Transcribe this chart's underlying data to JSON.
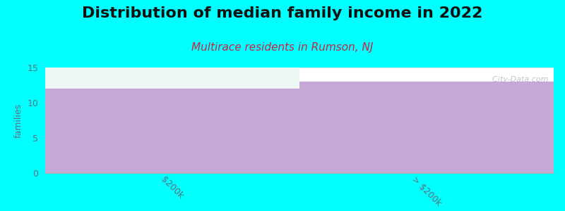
{
  "title": "Distribution of median family income in 2022",
  "subtitle": "Multirace residents in Rumson, NJ",
  "categories": [
    "$200k",
    "> $200k"
  ],
  "values": [
    12,
    13
  ],
  "bar_color": "#C4A8D8",
  "background_color": "#00FFFF",
  "plot_bg_color": "#FFFFFF",
  "ylabel": "families",
  "ylim": [
    0,
    15
  ],
  "yticks": [
    0,
    5,
    10,
    15
  ],
  "title_fontsize": 16,
  "subtitle_fontsize": 11,
  "subtitle_color": "#CC2244",
  "ylabel_color": "#607080",
  "tick_label_color": "#607080",
  "watermark": "  City-Data.com",
  "bar1_top_color": "#EEF8F2",
  "title_fontweight": "bold"
}
